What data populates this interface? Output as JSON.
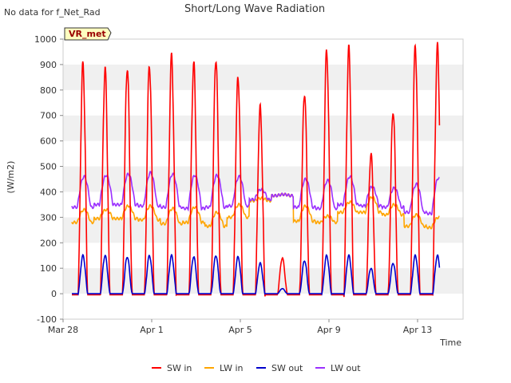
{
  "page": {
    "corner_note": "No data for f_Net_Rad",
    "badge_label": "VR_met"
  },
  "chart_data": {
    "type": "line",
    "title": "Short/Long Wave Radiation",
    "xlabel": "Time",
    "ylabel": "(W/m2)",
    "ylim": [
      -100,
      1000
    ],
    "xlim": [
      "2018-03-28",
      "2018-04-16"
    ],
    "yticks": [
      -100,
      0,
      100,
      200,
      300,
      400,
      500,
      600,
      700,
      800,
      900,
      1000
    ],
    "xtick_labels": [
      "Mar 28",
      "Apr 1",
      "Apr 5",
      "Apr 9",
      "Apr 13"
    ],
    "grid": "horizontal bands",
    "legend_position": "bottom",
    "x_days": [
      "Mar 28",
      "Mar 29",
      "Mar 30",
      "Mar 31",
      "Apr 1",
      "Apr 2",
      "Apr 3",
      "Apr 4",
      "Apr 5",
      "Apr 6",
      "Apr 7",
      "Apr 8",
      "Apr 9",
      "Apr 10",
      "Apr 11",
      "Apr 12",
      "Apr 13",
      "Apr 14"
    ],
    "series": [
      {
        "name": "SW in",
        "color": "#ff0000",
        "daily_peak": [
          900,
          880,
          890,
          900,
          930,
          905,
          925,
          850,
          730,
          140,
          790,
          955,
          960,
          550,
          720,
          970,
          970,
          0
        ]
      },
      {
        "name": "LW in",
        "color": "#ffa500",
        "daily_min": [
          280,
          295,
          295,
          290,
          275,
          280,
          265,
          300,
          365,
          385,
          285,
          280,
          320,
          320,
          310,
          265,
          260,
          0
        ],
        "daily_max": [
          330,
          330,
          345,
          345,
          335,
          340,
          320,
          350,
          375,
          390,
          345,
          305,
          360,
          380,
          350,
          310,
          300,
          0
        ]
      },
      {
        "name": "SW out",
        "color": "#0000cc",
        "daily_peak": [
          150,
          150,
          145,
          150,
          150,
          145,
          150,
          145,
          120,
          20,
          130,
          150,
          150,
          100,
          120,
          150,
          150,
          0
        ]
      },
      {
        "name": "LW out",
        "color": "#9b30ff",
        "daily_min": [
          340,
          350,
          350,
          345,
          340,
          335,
          340,
          345,
          370,
          385,
          340,
          335,
          350,
          345,
          340,
          320,
          315,
          0
        ],
        "daily_max": [
          460,
          465,
          470,
          475,
          470,
          465,
          465,
          460,
          410,
          390,
          450,
          445,
          460,
          420,
          415,
          430,
          455,
          0
        ]
      }
    ]
  }
}
